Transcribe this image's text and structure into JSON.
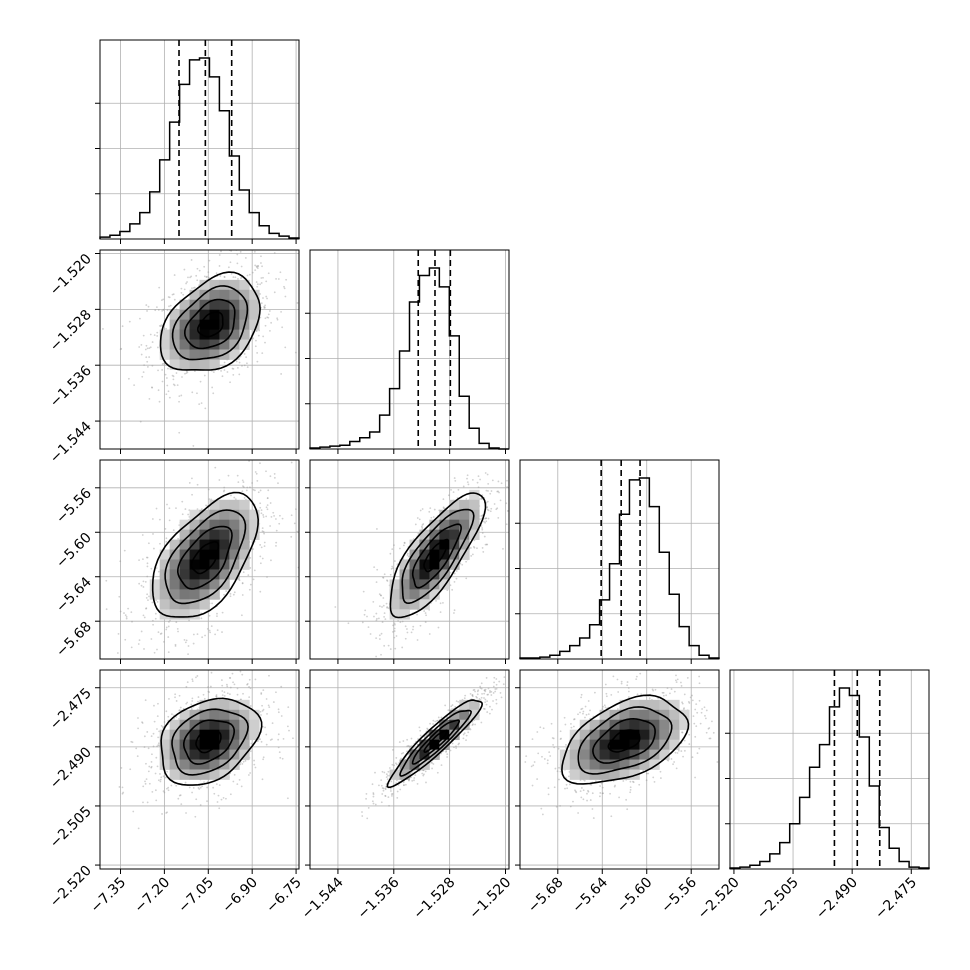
{
  "chart_data": {
    "type": "corner",
    "grid": true,
    "parameters": [
      {
        "range": [
          -7.42,
          -6.74
        ],
        "ticks": [
          "-7.35",
          "-7.20",
          "-7.05",
          "-6.90",
          "-6.75"
        ],
        "tick_values": [
          -7.35,
          -7.2,
          -7.05,
          -6.9,
          -6.75
        ],
        "quantiles": [
          -7.15,
          -7.06,
          -6.97
        ]
      },
      {
        "range": [
          -1.548,
          -1.5195
        ],
        "ticks": [
          "-1.544",
          "-1.536",
          "-1.528",
          "-1.520"
        ],
        "tick_values": [
          -1.544,
          -1.536,
          -1.528,
          -1.52
        ],
        "quantiles": [
          -1.5325,
          -1.5301,
          -1.5279
        ]
      },
      {
        "range": [
          -5.714,
          -5.535
        ],
        "ticks": [
          "-5.68",
          "-5.64",
          "-5.60",
          "-5.56"
        ],
        "tick_values": [
          -5.68,
          -5.64,
          -5.6,
          -5.56
        ],
        "quantiles": [
          -5.641,
          -5.623,
          -5.606
        ]
      },
      {
        "range": [
          -2.521,
          -2.4705
        ],
        "ticks": [
          "-2.520",
          "-2.505",
          "-2.490",
          "-2.475"
        ],
        "tick_values": [
          -2.52,
          -2.505,
          -2.49,
          -2.475
        ],
        "quantiles": [
          -2.4945,
          -2.4887,
          -2.483
        ]
      }
    ],
    "histograms": [
      [
        1,
        2,
        4,
        8,
        14,
        25,
        42,
        62,
        82,
        95,
        96,
        86,
        68,
        44,
        26,
        14,
        7,
        3,
        1.5,
        0.5
      ],
      [
        0.5,
        1,
        1.5,
        2,
        4,
        6,
        9,
        18,
        32,
        52,
        78,
        92,
        96,
        86,
        60,
        28,
        11,
        3,
        0.5,
        0
      ],
      [
        0.5,
        0.5,
        1,
        2,
        4,
        7,
        11,
        18,
        31,
        50,
        76,
        94,
        95,
        80,
        56,
        34,
        17,
        7,
        2,
        0.5
      ],
      [
        0.5,
        1,
        2,
        4,
        8,
        14,
        24,
        38,
        54,
        66,
        86,
        96,
        92,
        70,
        44,
        22,
        11,
        4,
        1,
        0.5
      ]
    ],
    "densities": [
      {
        "row": 1,
        "col": 0,
        "center": [
          -7.04,
          -1.5302
        ],
        "sigma": [
          0.085,
          0.0035
        ],
        "correlation": 0.35
      },
      {
        "row": 2,
        "col": 0,
        "center": [
          -7.06,
          -5.623
        ],
        "sigma": [
          0.09,
          0.028
        ],
        "correlation": 0.55
      },
      {
        "row": 2,
        "col": 1,
        "center": [
          -1.53,
          -5.621
        ],
        "sigma": [
          0.0034,
          0.028
        ],
        "correlation": 0.78
      },
      {
        "row": 3,
        "col": 0,
        "center": [
          -7.05,
          -2.4885
        ],
        "sigma": [
          0.085,
          0.0055
        ],
        "correlation": 0.3
      },
      {
        "row": 3,
        "col": 1,
        "center": [
          -1.53,
          -2.4885
        ],
        "sigma": [
          0.0033,
          0.0055
        ],
        "correlation": 0.93
      },
      {
        "row": 3,
        "col": 2,
        "center": [
          -5.62,
          -2.4885
        ],
        "sigma": [
          0.028,
          0.0055
        ],
        "correlation": 0.45
      }
    ],
    "contour_levels_sigma": [
      0.5,
      1.0,
      1.5,
      2.0
    ]
  }
}
